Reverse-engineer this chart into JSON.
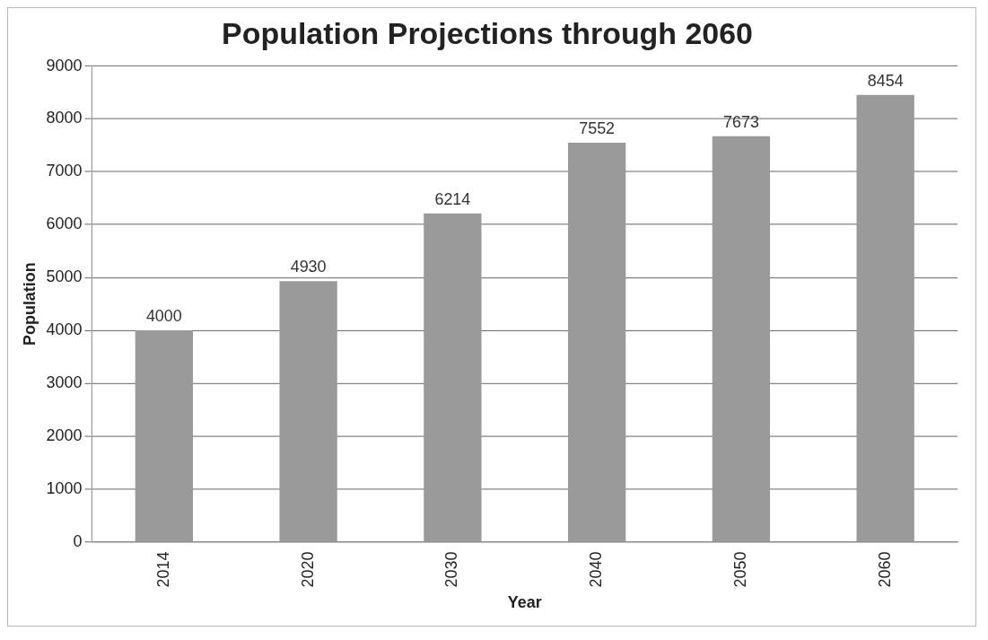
{
  "chart_data": {
    "type": "bar",
    "title": "Population Projections through 2060",
    "xlabel": "Year",
    "ylabel": "Population",
    "categories": [
      "2014",
      "2020",
      "2030",
      "2040",
      "2050",
      "2060"
    ],
    "values": [
      4000,
      4930,
      6214,
      7552,
      7673,
      8454
    ],
    "color": "#9a9a9a",
    "ylim": [
      0,
      9000
    ],
    "yticks": [
      0,
      1000,
      2000,
      3000,
      4000,
      5000,
      6000,
      7000,
      8000,
      9000
    ],
    "grid": "y",
    "data_labels": true,
    "legend": false
  }
}
